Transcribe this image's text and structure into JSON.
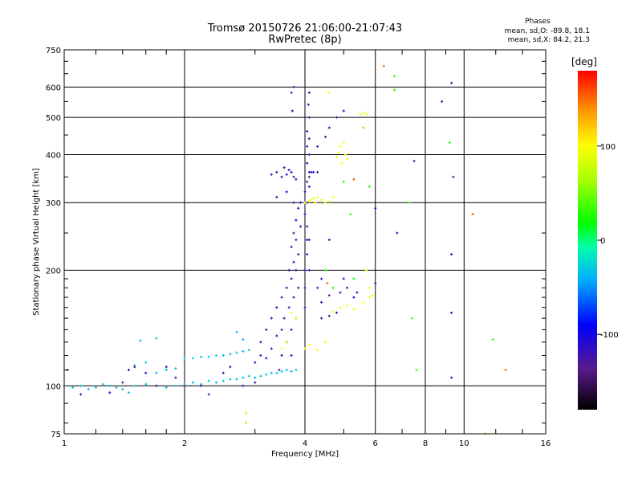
{
  "header": {
    "title_line1": "Tromsø 20150726 21:06:00-21:07:43",
    "title_line2": "RwPretec (8p)",
    "phase_title": "Phases",
    "stat_o": "mean, sd,O: -89.8, 18.1",
    "stat_x": "mean, sd,X:  84.2, 21.3"
  },
  "colorbar": {
    "title": "[deg]",
    "min": -180,
    "max": 180,
    "ticks": [
      100,
      0,
      -100
    ],
    "tick_labels": [
      "100",
      "0",
      "-100"
    ]
  },
  "chart_data": {
    "type": "scatter",
    "title": "Tromsø 20150726 21:06:00-21:07:43",
    "subtitle": "RwPretec (8p)",
    "xlabel": "Frequency [MHz]",
    "ylabel": "Stationary phase Virtual Height [km]",
    "xscale": "log",
    "yscale": "log",
    "xlim": [
      1,
      16
    ],
    "ylim": [
      75,
      750
    ],
    "xticks": [
      1,
      2,
      4,
      6,
      8,
      10,
      16
    ],
    "xtick_labels": [
      "1",
      "2",
      "4",
      "6",
      "8",
      "10",
      "16"
    ],
    "yticks": [
      75,
      100,
      200,
      300,
      400,
      500,
      600,
      750
    ],
    "ytick_labels": [
      "75",
      "100",
      "200",
      "300",
      "400",
      "500",
      "600",
      "750"
    ],
    "grid": true,
    "color_scale": "phase",
    "series": [
      {
        "values": [
          [
            1.0,
            100,
            -40
          ],
          [
            1.05,
            99,
            -35
          ],
          [
            1.1,
            100,
            -30
          ],
          [
            1.15,
            98,
            -40
          ],
          [
            1.2,
            99,
            -35
          ],
          [
            1.25,
            101,
            -30
          ],
          [
            1.3,
            100,
            -40
          ],
          [
            1.35,
            99,
            -35
          ],
          [
            1.4,
            98,
            -40
          ],
          [
            1.45,
            96,
            -35
          ],
          [
            1.5,
            100,
            -30
          ],
          [
            1.6,
            101,
            -40
          ],
          [
            1.7,
            100,
            -35
          ],
          [
            1.8,
            99,
            -40
          ],
          [
            1.9,
            100,
            -30
          ],
          [
            2.0,
            101,
            -35
          ],
          [
            2.1,
            102,
            -40
          ],
          [
            2.2,
            101,
            -30
          ],
          [
            2.3,
            103,
            -35
          ],
          [
            2.4,
            102,
            -40
          ],
          [
            2.5,
            103,
            -35
          ],
          [
            2.6,
            104,
            -30
          ],
          [
            2.7,
            104,
            -40
          ],
          [
            2.8,
            105,
            -35
          ],
          [
            2.9,
            106,
            -30
          ],
          [
            3.0,
            105,
            -40
          ],
          [
            3.1,
            106,
            -35
          ],
          [
            3.2,
            107,
            -30
          ],
          [
            3.3,
            108,
            -40
          ],
          [
            3.4,
            108,
            -35
          ],
          [
            3.5,
            109,
            -30
          ],
          [
            3.6,
            110,
            -40
          ],
          [
            3.7,
            109,
            -35
          ],
          [
            3.8,
            110,
            -30
          ]
        ]
      },
      {
        "values": [
          [
            1.7,
            108,
            -40
          ],
          [
            1.8,
            110,
            -35
          ],
          [
            1.9,
            111,
            -40
          ],
          [
            2.0,
            118,
            -35
          ],
          [
            2.1,
            118,
            -30
          ],
          [
            2.2,
            119,
            -40
          ],
          [
            2.3,
            119,
            -35
          ],
          [
            2.4,
            120,
            -30
          ],
          [
            2.5,
            120,
            -40
          ],
          [
            2.6,
            121,
            -35
          ],
          [
            2.7,
            122,
            -30
          ],
          [
            2.8,
            123,
            -40
          ],
          [
            2.9,
            124,
            -35
          ],
          [
            1.6,
            115,
            -30
          ],
          [
            1.5,
            113,
            -40
          ],
          [
            1.55,
            131,
            -40
          ],
          [
            1.7,
            133,
            -30
          ],
          [
            2.8,
            132,
            -40
          ],
          [
            2.7,
            138,
            -35
          ]
        ]
      },
      {
        "values": [
          [
            1.02,
            110,
            -125
          ],
          [
            1.1,
            95,
            -120
          ],
          [
            1.3,
            96,
            -110
          ],
          [
            1.4,
            102,
            -125
          ],
          [
            1.45,
            110,
            -105
          ],
          [
            1.5,
            112,
            -120
          ],
          [
            1.6,
            108,
            -110
          ],
          [
            1.7,
            100,
            -125
          ],
          [
            1.8,
            112,
            -110
          ],
          [
            1.9,
            105,
            -120
          ],
          [
            2.2,
            100,
            -115
          ],
          [
            2.3,
            95,
            -125
          ],
          [
            2.5,
            108,
            -120
          ],
          [
            2.6,
            112,
            -115
          ],
          [
            2.8,
            100,
            -125
          ],
          [
            3.0,
            102,
            -120
          ],
          [
            3.0,
            115,
            -110
          ],
          [
            3.1,
            120,
            -125
          ],
          [
            3.1,
            130,
            -115
          ],
          [
            3.2,
            140,
            -120
          ],
          [
            3.2,
            118,
            -110
          ],
          [
            3.3,
            125,
            -125
          ],
          [
            3.3,
            150,
            -115
          ],
          [
            3.4,
            135,
            -120
          ],
          [
            3.4,
            160,
            -110
          ],
          [
            3.45,
            110,
            -125
          ],
          [
            3.5,
            120,
            -115
          ],
          [
            3.5,
            140,
            -120
          ],
          [
            3.5,
            170,
            -110
          ],
          [
            3.55,
            150,
            -125
          ],
          [
            3.6,
            130,
            -115
          ],
          [
            3.6,
            180,
            -120
          ],
          [
            3.65,
            200,
            -110
          ],
          [
            3.65,
            160,
            -125
          ],
          [
            3.7,
            230,
            -115
          ],
          [
            3.7,
            190,
            -120
          ],
          [
            3.7,
            140,
            -110
          ],
          [
            3.75,
            250,
            -125
          ],
          [
            3.75,
            210,
            -115
          ],
          [
            3.75,
            170,
            -120
          ],
          [
            3.8,
            270,
            -110
          ],
          [
            3.8,
            240,
            -125
          ],
          [
            3.8,
            200,
            -115
          ],
          [
            3.8,
            150,
            -120
          ],
          [
            3.85,
            290,
            -110
          ],
          [
            3.85,
            220,
            -125
          ],
          [
            3.85,
            180,
            -115
          ],
          [
            3.9,
            260,
            -120
          ],
          [
            3.9,
            300,
            -110
          ],
          [
            3.6,
            130,
            -125
          ],
          [
            3.7,
            120,
            -115
          ]
        ]
      },
      {
        "values": [
          [
            3.3,
            355,
            -125
          ],
          [
            3.4,
            360,
            -120
          ],
          [
            3.5,
            350,
            -115
          ],
          [
            3.55,
            370,
            -125
          ],
          [
            3.6,
            355,
            -110
          ],
          [
            3.65,
            365,
            -120
          ],
          [
            3.7,
            360,
            -115
          ],
          [
            3.75,
            350,
            -125
          ],
          [
            3.8,
            345,
            -120
          ],
          [
            3.7,
            580,
            -125
          ],
          [
            3.72,
            520,
            -115
          ],
          [
            3.75,
            600,
            -120
          ],
          [
            3.4,
            310,
            -125
          ],
          [
            3.6,
            320,
            -110
          ],
          [
            3.75,
            300,
            -120
          ]
        ]
      },
      {
        "values": [
          [
            4.0,
            160,
            -120
          ],
          [
            4.0,
            180,
            -125
          ],
          [
            4.0,
            200,
            -115
          ],
          [
            4.05,
            220,
            -120
          ],
          [
            4.05,
            240,
            -110
          ],
          [
            4.05,
            260,
            -125
          ],
          [
            4.0,
            280,
            -115
          ],
          [
            4.05,
            300,
            -120
          ],
          [
            4.0,
            320,
            -110
          ],
          [
            4.05,
            340,
            -125
          ],
          [
            4.1,
            360,
            -115
          ],
          [
            4.05,
            380,
            -120
          ],
          [
            4.1,
            400,
            -110
          ],
          [
            4.05,
            420,
            -125
          ],
          [
            4.1,
            440,
            -115
          ],
          [
            4.05,
            460,
            -120
          ],
          [
            4.1,
            500,
            -110
          ],
          [
            4.08,
            540,
            -125
          ],
          [
            4.1,
            580,
            -115
          ],
          [
            4.1,
            350,
            -125
          ],
          [
            4.15,
            360,
            -120
          ],
          [
            4.2,
            360,
            -110
          ],
          [
            4.3,
            360,
            -125
          ],
          [
            4.1,
            330,
            -110
          ],
          [
            4.1,
            240,
            -120
          ],
          [
            4.1,
            200,
            -125
          ]
        ]
      },
      {
        "values": [
          [
            4.3,
            420,
            -120
          ],
          [
            4.5,
            445,
            -125
          ],
          [
            4.6,
            470,
            -115
          ],
          [
            4.8,
            500,
            -120
          ],
          [
            5.0,
            520,
            -110
          ],
          [
            4.4,
            150,
            -125
          ],
          [
            4.6,
            152,
            -115
          ],
          [
            4.8,
            155,
            -120
          ],
          [
            4.4,
            165,
            -110
          ],
          [
            4.6,
            172,
            -125
          ],
          [
            4.9,
            175,
            -115
          ],
          [
            5.1,
            180,
            -120
          ],
          [
            5.3,
            170,
            -110
          ],
          [
            4.3,
            180,
            -125
          ],
          [
            4.4,
            190,
            -115
          ],
          [
            4.6,
            240,
            -120
          ],
          [
            5.0,
            190,
            -110
          ],
          [
            5.4,
            175,
            -125
          ]
        ]
      },
      {
        "values": [
          [
            4.0,
            300,
            95
          ],
          [
            4.1,
            302,
            100
          ],
          [
            4.15,
            305,
            95
          ],
          [
            4.2,
            308,
            90
          ],
          [
            4.25,
            300,
            95
          ],
          [
            4.3,
            310,
            100
          ],
          [
            4.4,
            305,
            95
          ],
          [
            4.5,
            300,
            90
          ],
          [
            4.6,
            302,
            95
          ],
          [
            4.7,
            310,
            100
          ],
          [
            4.8,
            395,
            90
          ],
          [
            4.85,
            405,
            95
          ],
          [
            4.9,
            420,
            100
          ],
          [
            5.0,
            430,
            95
          ],
          [
            5.05,
            400,
            90
          ],
          [
            5.1,
            390,
            95
          ],
          [
            4.95,
            380,
            100
          ],
          [
            5.5,
            510,
            95
          ],
          [
            5.6,
            515,
            100
          ],
          [
            5.7,
            510,
            90
          ],
          [
            4.6,
            580,
            95
          ],
          [
            3.7,
            155,
            95
          ],
          [
            3.8,
            150,
            90
          ],
          [
            4.0,
            125,
            95
          ],
          [
            4.1,
            128,
            100
          ],
          [
            4.3,
            124,
            95
          ],
          [
            4.5,
            130,
            90
          ],
          [
            4.7,
            156,
            95
          ],
          [
            4.9,
            160,
            100
          ],
          [
            5.1,
            162,
            95
          ],
          [
            5.3,
            158,
            90
          ],
          [
            5.6,
            165,
            100
          ],
          [
            5.8,
            170,
            95
          ],
          [
            5.9,
            172,
            90
          ],
          [
            5.7,
            200,
            100
          ],
          [
            5.8,
            180,
            95
          ],
          [
            3.5,
            125,
            95
          ],
          [
            3.6,
            130,
            100
          ]
        ]
      },
      {
        "values": [
          [
            4.5,
            200,
            25
          ],
          [
            5.2,
            280,
            30
          ],
          [
            5.0,
            340,
            25
          ],
          [
            5.8,
            330,
            30
          ],
          [
            4.7,
            180,
            25
          ],
          [
            5.3,
            190,
            20
          ]
        ]
      },
      {
        "values": [
          [
            6.3,
            680,
            150
          ],
          [
            6.7,
            590,
            120
          ],
          [
            5.3,
            345,
            155
          ],
          [
            5.6,
            470,
            130
          ],
          [
            4.55,
            185,
            150
          ],
          [
            2.85,
            85,
            110
          ],
          [
            2.85,
            80,
            115
          ],
          [
            12.7,
            110,
            145
          ],
          [
            10.5,
            280,
            155
          ]
        ]
      },
      {
        "values": [
          [
            6.7,
            640,
            30
          ],
          [
            7.3,
            300,
            40
          ],
          [
            7.4,
            150,
            30
          ],
          [
            7.6,
            110,
            35
          ],
          [
            11.3,
            75,
            40
          ],
          [
            11.8,
            132,
            30
          ],
          [
            9.2,
            430,
            20
          ],
          [
            6.7,
            590,
            35
          ]
        ]
      },
      {
        "values": [
          [
            6.0,
            185,
            -120
          ],
          [
            7.5,
            385,
            -130
          ],
          [
            8.8,
            550,
            -115
          ],
          [
            9.3,
            615,
            -120
          ],
          [
            9.4,
            350,
            -125
          ],
          [
            9.3,
            220,
            -115
          ],
          [
            9.3,
            155,
            -120
          ],
          [
            9.3,
            105,
            -125
          ],
          [
            6.8,
            250,
            -115
          ],
          [
            6.0,
            290,
            -110
          ]
        ]
      }
    ]
  }
}
